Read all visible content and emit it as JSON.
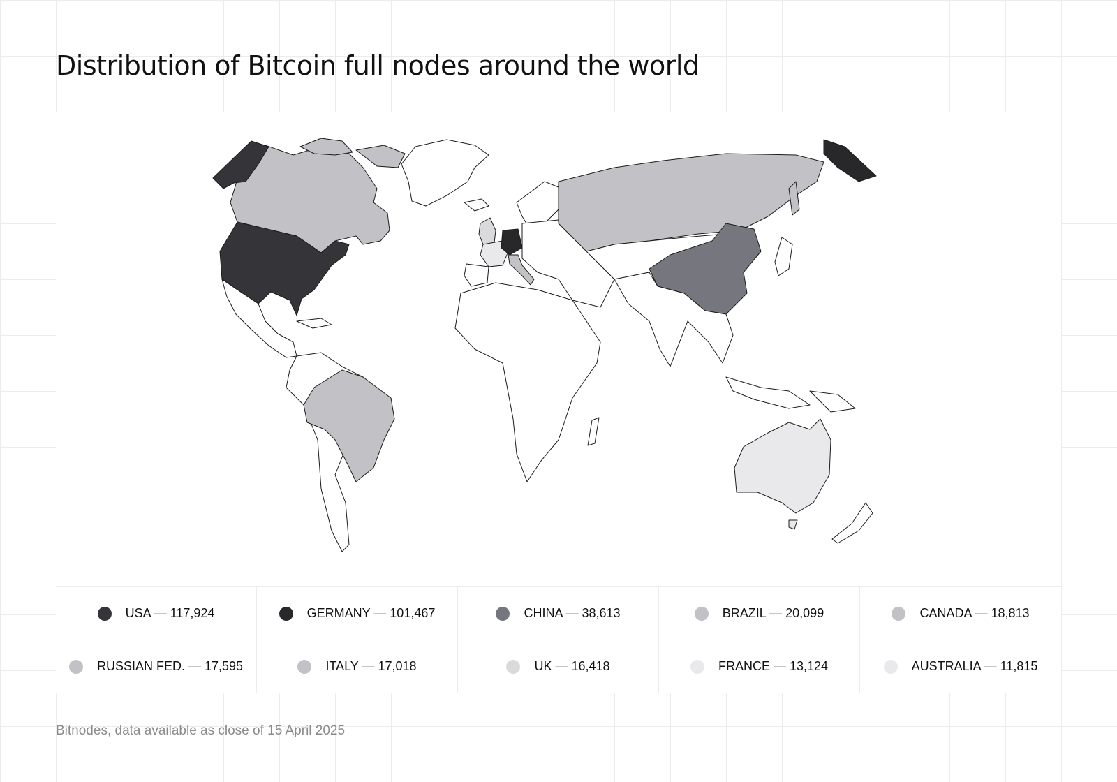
{
  "title": "Distribution of Bitcoin full nodes around the world",
  "source": "Bitnodes, data available as close of 15 April 2025",
  "colors": {
    "land_default": "#ffffff",
    "border": "#1a1a1a",
    "tier_1": "#2f2f33",
    "tier_2": "#76767e",
    "tier_3": "#c2c2c6",
    "tier_4": "#dadadd",
    "tier_5": "#e9e9eb"
  },
  "legend": [
    {
      "label": "USA — 117,924",
      "country": "USA",
      "value": 117924,
      "color": "#353539"
    },
    {
      "label": "GERMANY — 101,467",
      "country": "GERMANY",
      "value": 101467,
      "color": "#28282b"
    },
    {
      "label": "CHINA — 38,613",
      "country": "CHINA",
      "value": 38613,
      "color": "#76767e"
    },
    {
      "label": "BRAZIL — 20,099",
      "country": "BRAZIL",
      "value": 20099,
      "color": "#c2c2c6"
    },
    {
      "label": "CANADA — 18,813",
      "country": "CANADA",
      "value": 18813,
      "color": "#c2c2c6"
    },
    {
      "label": "RUSSIAN FED. — 17,595",
      "country": "RUSSIAN FED.",
      "value": 17595,
      "color": "#c2c2c6"
    },
    {
      "label": "ITALY — 17,018",
      "country": "ITALY",
      "value": 17018,
      "color": "#c2c2c6"
    },
    {
      "label": "UK — 16,418",
      "country": "UK",
      "value": 16418,
      "color": "#dadadd"
    },
    {
      "label": "FRANCE — 13,124",
      "country": "FRANCE",
      "value": 13124,
      "color": "#e9e9eb"
    },
    {
      "label": "AUSTRALIA — 11,815",
      "country": "AUSTRALIA",
      "value": 11815,
      "color": "#e9e9eb"
    }
  ]
}
